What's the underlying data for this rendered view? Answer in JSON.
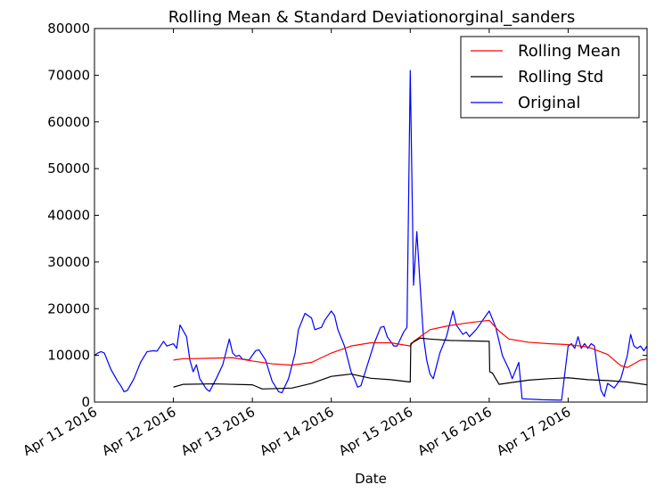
{
  "chart_data": {
    "type": "line",
    "title": "Rolling Mean & Standard Deviationorginal_sanders",
    "xlabel": "Date",
    "ylabel": "",
    "xlim": [
      "2016-04-11 00:00",
      "2016-04-18 00:00"
    ],
    "ylim": [
      0,
      80000
    ],
    "grid": false,
    "legend_position": "top-right",
    "x_tick_labels": [
      "Apr 11 2016",
      "Apr 12 2016",
      "Apr 13 2016",
      "Apr 14 2016",
      "Apr 15 2016",
      "Apr 16 2016",
      "Apr 17 2016"
    ],
    "y_tick_labels": [
      "0",
      "10000",
      "20000",
      "30000",
      "40000",
      "50000",
      "60000",
      "70000",
      "80000"
    ],
    "y_ticks": [
      0,
      10000,
      20000,
      30000,
      40000,
      50000,
      60000,
      70000,
      80000
    ],
    "x_ticks": [
      "2016-04-11 00:00",
      "2016-04-12 00:00",
      "2016-04-13 00:00",
      "2016-04-14 00:00",
      "2016-04-15 00:00",
      "2016-04-16 00:00",
      "2016-04-17 00:00"
    ],
    "series": [
      {
        "name": "Rolling Mean",
        "color": "#ff0000",
        "points": [
          [
            "2016-04-12 00:00",
            9000
          ],
          [
            "2016-04-12 03:00",
            9300
          ],
          [
            "2016-04-12 06:00",
            9300
          ],
          [
            "2016-04-12 12:00",
            9400
          ],
          [
            "2016-04-12 18:00",
            9500
          ],
          [
            "2016-04-13 00:00",
            8800
          ],
          [
            "2016-04-13 06:00",
            8200
          ],
          [
            "2016-04-13 12:00",
            7900
          ],
          [
            "2016-04-13 18:00",
            8500
          ],
          [
            "2016-04-14 00:00",
            10500
          ],
          [
            "2016-04-14 06:00",
            12000
          ],
          [
            "2016-04-14 12:00",
            12700
          ],
          [
            "2016-04-14 18:00",
            12700
          ],
          [
            "2016-04-15 00:00",
            12000
          ],
          [
            "2016-04-15 01:00",
            13000
          ],
          [
            "2016-04-15 06:00",
            15500
          ],
          [
            "2016-04-15 12:00",
            16400
          ],
          [
            "2016-04-15 18:00",
            17000
          ],
          [
            "2016-04-16 00:00",
            17500
          ],
          [
            "2016-04-16 03:00",
            15200
          ],
          [
            "2016-04-16 06:00",
            13500
          ],
          [
            "2016-04-16 12:00",
            12800
          ],
          [
            "2016-04-16 18:00",
            12500
          ],
          [
            "2016-04-17 00:00",
            12300
          ],
          [
            "2016-04-17 06:00",
            11800
          ],
          [
            "2016-04-17 12:00",
            10200
          ],
          [
            "2016-04-17 16:00",
            7800
          ],
          [
            "2016-04-17 18:00",
            7400
          ],
          [
            "2016-04-17 22:00",
            9000
          ],
          [
            "2016-04-18 00:00",
            9200
          ]
        ]
      },
      {
        "name": "Rolling Std",
        "color": "#000000",
        "points": [
          [
            "2016-04-12 00:00",
            3200
          ],
          [
            "2016-04-12 03:00",
            3800
          ],
          [
            "2016-04-12 12:00",
            3900
          ],
          [
            "2016-04-13 00:00",
            3700
          ],
          [
            "2016-04-13 03:00",
            2800
          ],
          [
            "2016-04-13 12:00",
            3000
          ],
          [
            "2016-04-13 18:00",
            4000
          ],
          [
            "2016-04-14 00:00",
            5500
          ],
          [
            "2016-04-14 06:00",
            6000
          ],
          [
            "2016-04-14 12:00",
            5100
          ],
          [
            "2016-04-14 18:00",
            4800
          ],
          [
            "2016-04-15 00:00",
            4300
          ],
          [
            "2016-04-15 00:10",
            12500
          ],
          [
            "2016-04-15 03:00",
            13700
          ],
          [
            "2016-04-15 06:00",
            13500
          ],
          [
            "2016-04-15 12:00",
            13200
          ],
          [
            "2016-04-15 18:00",
            13100
          ],
          [
            "2016-04-16 00:00",
            13000
          ],
          [
            "2016-04-16 00:10",
            6500
          ],
          [
            "2016-04-16 01:00",
            6200
          ],
          [
            "2016-04-16 03:00",
            3800
          ],
          [
            "2016-04-16 06:00",
            4100
          ],
          [
            "2016-04-16 12:00",
            4700
          ],
          [
            "2016-04-16 18:00",
            5000
          ],
          [
            "2016-04-17 00:00",
            5200
          ],
          [
            "2016-04-17 06:00",
            4800
          ],
          [
            "2016-04-17 12:00",
            4600
          ],
          [
            "2016-04-17 18:00",
            4300
          ],
          [
            "2016-04-18 00:00",
            3700
          ]
        ]
      },
      {
        "name": "Original",
        "color": "#0000ff",
        "points": [
          [
            "2016-04-11 00:00",
            10000
          ],
          [
            "2016-04-11 01:00",
            10500
          ],
          [
            "2016-04-11 02:00",
            10800
          ],
          [
            "2016-04-11 03:00",
            10500
          ],
          [
            "2016-04-11 05:00",
            7000
          ],
          [
            "2016-04-11 07:00",
            4500
          ],
          [
            "2016-04-11 08:00",
            3500
          ],
          [
            "2016-04-11 09:00",
            2200
          ],
          [
            "2016-04-11 10:00",
            2500
          ],
          [
            "2016-04-11 12:00",
            5000
          ],
          [
            "2016-04-11 14:00",
            8500
          ],
          [
            "2016-04-11 16:00",
            10800
          ],
          [
            "2016-04-11 18:00",
            11000
          ],
          [
            "2016-04-11 19:00",
            10900
          ],
          [
            "2016-04-11 21:00",
            13000
          ],
          [
            "2016-04-11 22:00",
            12000
          ],
          [
            "2016-04-12 00:00",
            12500
          ],
          [
            "2016-04-12 01:00",
            11500
          ],
          [
            "2016-04-12 02:00",
            16500
          ],
          [
            "2016-04-12 04:00",
            14000
          ],
          [
            "2016-04-12 05:00",
            9000
          ],
          [
            "2016-04-12 06:00",
            6500
          ],
          [
            "2016-04-12 07:00",
            8000
          ],
          [
            "2016-04-12 08:00",
            5000
          ],
          [
            "2016-04-12 10:00",
            2800
          ],
          [
            "2016-04-12 11:00",
            2300
          ],
          [
            "2016-04-12 13:00",
            5000
          ],
          [
            "2016-04-12 15:00",
            8000
          ],
          [
            "2016-04-12 17:00",
            13500
          ],
          [
            "2016-04-12 18:00",
            10500
          ],
          [
            "2016-04-12 19:00",
            9800
          ],
          [
            "2016-04-12 20:00",
            10000
          ],
          [
            "2016-04-12 21:00",
            9200
          ],
          [
            "2016-04-12 23:00",
            9000
          ],
          [
            "2016-04-13 00:00",
            10000
          ],
          [
            "2016-04-13 01:00",
            11000
          ],
          [
            "2016-04-13 02:00",
            11200
          ],
          [
            "2016-04-13 04:00",
            9000
          ],
          [
            "2016-04-13 06:00",
            4500
          ],
          [
            "2016-04-13 08:00",
            2200
          ],
          [
            "2016-04-13 09:00",
            2000
          ],
          [
            "2016-04-13 11:00",
            5000
          ],
          [
            "2016-04-13 13:00",
            10500
          ],
          [
            "2016-04-13 14:00",
            15500
          ],
          [
            "2016-04-13 16:00",
            19000
          ],
          [
            "2016-04-13 18:00",
            18000
          ],
          [
            "2016-04-13 19:00",
            15500
          ],
          [
            "2016-04-13 21:00",
            16000
          ],
          [
            "2016-04-13 22:00",
            17500
          ],
          [
            "2016-04-14 00:00",
            19500
          ],
          [
            "2016-04-14 01:00",
            18500
          ],
          [
            "2016-04-14 02:00",
            15500
          ],
          [
            "2016-04-14 04:00",
            12000
          ],
          [
            "2016-04-14 06:00",
            6500
          ],
          [
            "2016-04-14 07:00",
            5000
          ],
          [
            "2016-04-14 08:00",
            3200
          ],
          [
            "2016-04-14 09:00",
            3500
          ],
          [
            "2016-04-14 11:00",
            8000
          ],
          [
            "2016-04-14 13:00",
            12500
          ],
          [
            "2016-04-14 15:00",
            16000
          ],
          [
            "2016-04-14 16:00",
            16200
          ],
          [
            "2016-04-14 17:00",
            14000
          ],
          [
            "2016-04-14 19:00",
            12000
          ],
          [
            "2016-04-14 20:00",
            12000
          ],
          [
            "2016-04-14 22:00",
            15000
          ],
          [
            "2016-04-14 23:00",
            16000
          ],
          [
            "2016-04-15 00:00",
            71000
          ],
          [
            "2016-04-15 01:00",
            25000
          ],
          [
            "2016-04-15 02:00",
            36500
          ],
          [
            "2016-04-15 03:00",
            25000
          ],
          [
            "2016-04-15 04:00",
            14000
          ],
          [
            "2016-04-15 05:00",
            9000
          ],
          [
            "2016-04-15 06:00",
            6000
          ],
          [
            "2016-04-15 07:00",
            5000
          ],
          [
            "2016-04-15 09:00",
            10500
          ],
          [
            "2016-04-15 11:00",
            14000
          ],
          [
            "2016-04-15 13:00",
            19500
          ],
          [
            "2016-04-15 14:00",
            16500
          ],
          [
            "2016-04-15 16:00",
            14500
          ],
          [
            "2016-04-15 17:00",
            15000
          ],
          [
            "2016-04-15 18:00",
            14000
          ],
          [
            "2016-04-15 20:00",
            15500
          ],
          [
            "2016-04-16 00:00",
            19500
          ],
          [
            "2016-04-16 02:00",
            16000
          ],
          [
            "2016-04-16 04:00",
            10000
          ],
          [
            "2016-04-16 06:00",
            7000
          ],
          [
            "2016-04-16 07:00",
            5000
          ],
          [
            "2016-04-16 09:00",
            8500
          ],
          [
            "2016-04-16 10:00",
            700
          ],
          [
            "2016-04-16 16:00",
            500
          ],
          [
            "2016-04-16 22:00",
            400
          ],
          [
            "2016-04-17 00:00",
            12000
          ],
          [
            "2016-04-17 01:00",
            12500
          ],
          [
            "2016-04-17 02:00",
            11500
          ],
          [
            "2016-04-17 03:00",
            14000
          ],
          [
            "2016-04-17 04:00",
            11500
          ],
          [
            "2016-04-17 05:00",
            12500
          ],
          [
            "2016-04-17 06:00",
            11500
          ],
          [
            "2016-04-17 07:00",
            12500
          ],
          [
            "2016-04-17 08:00",
            12000
          ],
          [
            "2016-04-17 09:00",
            6500
          ],
          [
            "2016-04-17 10:00",
            2500
          ],
          [
            "2016-04-17 11:00",
            1200
          ],
          [
            "2016-04-17 12:00",
            4000
          ],
          [
            "2016-04-17 13:00",
            3500
          ],
          [
            "2016-04-17 14:00",
            3000
          ],
          [
            "2016-04-17 16:00",
            5000
          ],
          [
            "2016-04-17 18:00",
            10000
          ],
          [
            "2016-04-17 19:00",
            14500
          ],
          [
            "2016-04-17 20:00",
            12000
          ],
          [
            "2016-04-17 21:00",
            11500
          ],
          [
            "2016-04-17 22:00",
            12000
          ],
          [
            "2016-04-17 23:00",
            11000
          ],
          [
            "2016-04-18 00:00",
            12000
          ]
        ]
      }
    ]
  }
}
